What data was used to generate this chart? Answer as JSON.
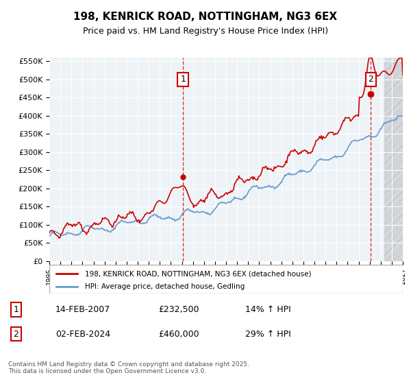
{
  "title": "198, KENRICK ROAD, NOTTINGHAM, NG3 6EX",
  "subtitle": "Price paid vs. HM Land Registry's House Price Index (HPI)",
  "legend_line1": "198, KENRICK ROAD, NOTTINGHAM, NG3 6EX (detached house)",
  "legend_line2": "HPI: Average price, detached house, Gedling",
  "annotation1": {
    "label": "1",
    "date": "14-FEB-2007",
    "price": "£232,500",
    "hpi": "14% ↑ HPI"
  },
  "annotation2": {
    "label": "2",
    "date": "02-FEB-2024",
    "price": "£460,000",
    "hpi": "29% ↑ HPI"
  },
  "copyright": "Contains HM Land Registry data © Crown copyright and database right 2025.\nThis data is licensed under the Open Government Licence v3.0.",
  "xmin": 1995,
  "xmax": 2027,
  "ymin": 0,
  "ymax": 550000,
  "red_color": "#cc0000",
  "blue_color": "#6699cc",
  "bg_color": "#dde8f0",
  "plot_bg": "#eef3f7",
  "hatch_color": "#cccccc",
  "ann1_x": 2007.1,
  "ann2_x": 2024.1,
  "ann1_price": 232500,
  "ann2_price": 460000,
  "vline1_x": 2007.1,
  "vline2_x": 2024.1
}
